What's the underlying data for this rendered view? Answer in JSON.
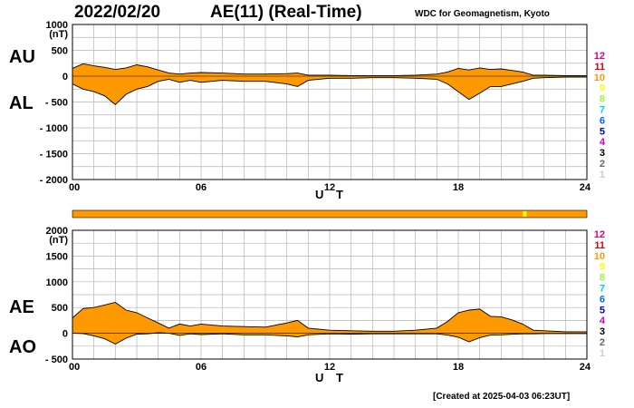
{
  "header": {
    "date": "2022/02/20",
    "title": "AE(11) (Real-Time)",
    "source": "WDC for Geomagnetism, Kyoto"
  },
  "footer": {
    "created": "[Created at 2025-04-03 06:23UT]"
  },
  "panels": {
    "top": {
      "label_upper": "AU",
      "label_lower": "AL",
      "xlabel": "U T"
    },
    "bottom": {
      "label_upper": "AE",
      "label_lower": "AO",
      "xlabel": "U T"
    }
  },
  "legend": {
    "numbers": [
      "12",
      "11",
      "10",
      "9",
      "8",
      "7",
      "6",
      "5",
      "4",
      "3",
      "2",
      "1"
    ],
    "colors": [
      "#e6007e",
      "#e60000",
      "#ff9900",
      "#ffff00",
      "#99ff33",
      "#00ccff",
      "#0066ff",
      "#0000cc",
      "#cc00cc",
      "#000000",
      "#666666",
      "#cccccc"
    ]
  },
  "chart_data": [
    {
      "type": "area",
      "title": "AU / AL",
      "xlabel": "U T",
      "ylabel": "(nT)",
      "xlim": [
        0,
        24
      ],
      "ylim": [
        -2000,
        1000
      ],
      "xticks": [
        "00",
        "06",
        "12",
        "18",
        "24"
      ],
      "yticks": [
        "1000",
        "(nT)",
        "500",
        "0",
        "- 500",
        "- 1000",
        "- 1500",
        "- 2000"
      ],
      "grid": true,
      "fill_color": "#ff9900",
      "series": [
        {
          "name": "AU",
          "x": [
            0,
            0.5,
            1,
            1.5,
            2,
            2.5,
            3,
            3.5,
            4,
            4.5,
            5,
            5.5,
            6,
            7,
            8,
            9,
            10,
            10.5,
            11,
            12,
            13,
            14,
            15,
            16,
            17,
            17.5,
            18,
            18.5,
            19,
            19.5,
            20,
            20.5,
            21,
            21.5,
            22,
            23,
            24
          ],
          "values": [
            150,
            240,
            200,
            170,
            130,
            160,
            220,
            180,
            120,
            60,
            40,
            60,
            70,
            60,
            40,
            40,
            50,
            60,
            20,
            20,
            10,
            10,
            10,
            20,
            40,
            80,
            150,
            120,
            160,
            130,
            140,
            110,
            80,
            20,
            20,
            10,
            10
          ]
        },
        {
          "name": "AL",
          "x": [
            0,
            0.5,
            1,
            1.5,
            2,
            2.5,
            3,
            3.5,
            4,
            4.5,
            5,
            5.5,
            6,
            7,
            8,
            9,
            10,
            10.5,
            11,
            12,
            13,
            14,
            15,
            16,
            17,
            17.5,
            18,
            18.5,
            19,
            19.5,
            20,
            20.5,
            21,
            21.5,
            22,
            23,
            24
          ],
          "values": [
            -150,
            -250,
            -300,
            -380,
            -550,
            -350,
            -250,
            -200,
            -100,
            -60,
            -120,
            -80,
            -120,
            -80,
            -100,
            -100,
            -150,
            -200,
            -80,
            -40,
            -40,
            -30,
            -30,
            -40,
            -60,
            -150,
            -300,
            -450,
            -330,
            -200,
            -200,
            -150,
            -100,
            -40,
            -30,
            -20,
            -20
          ]
        }
      ]
    },
    {
      "type": "area",
      "title": "AE / AO",
      "xlabel": "U T",
      "ylabel": "(nT)",
      "xlim": [
        0,
        24
      ],
      "ylim": [
        -500,
        2000
      ],
      "xticks": [
        "00",
        "06",
        "12",
        "18",
        "24"
      ],
      "yticks": [
        "2000",
        "(nT)",
        "1500",
        "1000",
        "500",
        "0",
        "- 500"
      ],
      "grid": true,
      "fill_color": "#ff9900",
      "series": [
        {
          "name": "AE",
          "x": [
            0,
            0.5,
            1,
            1.5,
            2,
            2.5,
            3,
            3.5,
            4,
            4.5,
            5,
            5.5,
            6,
            7,
            8,
            9,
            10,
            10.5,
            11,
            12,
            13,
            14,
            15,
            16,
            17,
            17.5,
            18,
            18.5,
            19,
            19.5,
            20,
            20.5,
            21,
            21.5,
            22,
            23,
            24
          ],
          "values": [
            300,
            480,
            500,
            550,
            600,
            450,
            400,
            300,
            200,
            100,
            180,
            140,
            180,
            140,
            130,
            120,
            200,
            250,
            100,
            60,
            50,
            40,
            40,
            60,
            100,
            230,
            400,
            450,
            470,
            330,
            320,
            260,
            180,
            60,
            50,
            30,
            30
          ]
        },
        {
          "name": "AO",
          "x": [
            0,
            0.5,
            1,
            1.5,
            2,
            2.5,
            3,
            3.5,
            4,
            4.5,
            5,
            5.5,
            6,
            7,
            8,
            9,
            10,
            10.5,
            11,
            12,
            13,
            14,
            15,
            16,
            17,
            17.5,
            18,
            18.5,
            19,
            19.5,
            20,
            20.5,
            21,
            21.5,
            22,
            23,
            24
          ],
          "values": [
            0,
            -5,
            -50,
            -105,
            -210,
            -95,
            -15,
            -10,
            10,
            0,
            -40,
            -10,
            -25,
            -10,
            -30,
            -30,
            -50,
            -70,
            -30,
            -10,
            -15,
            -10,
            -10,
            -10,
            -10,
            -35,
            -75,
            -165,
            -85,
            -35,
            -30,
            -20,
            -10,
            -10,
            -5,
            -5,
            -5
          ]
        }
      ]
    }
  ],
  "status_bar": {
    "fill_color": "#ff9900",
    "marker_color": "#ffff00",
    "marker_ut": 21.1
  }
}
